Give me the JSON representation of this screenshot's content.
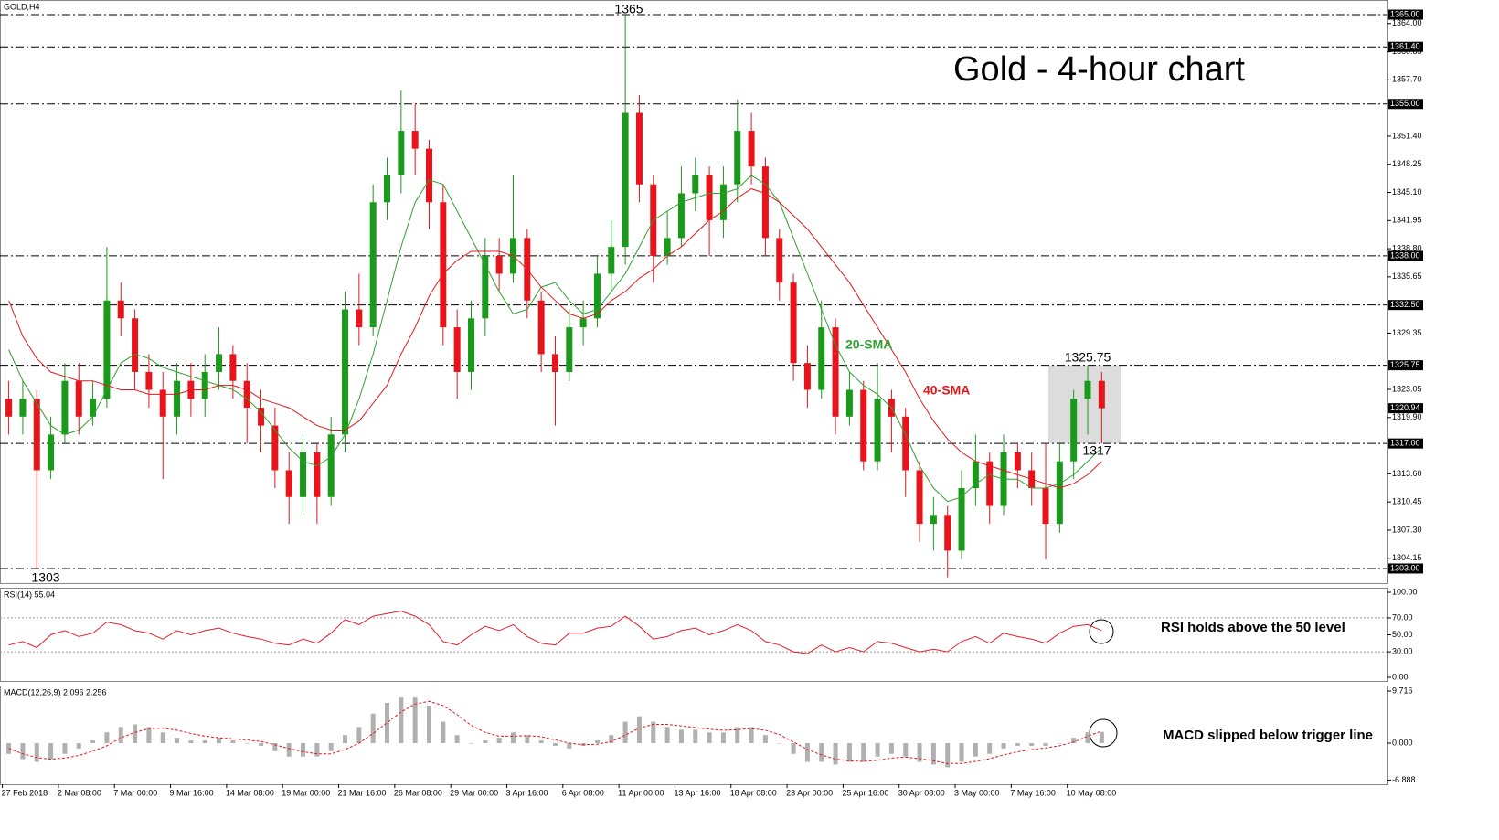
{
  "chart_data": [
    {
      "type": "candlestick",
      "title": "Gold - 4-hour chart",
      "symbol": "GOLD,H4",
      "categories": [
        "27 Feb 2018",
        null,
        null,
        null,
        "2 Mar 08:00",
        null,
        null,
        null,
        "7 Mar 00:00",
        null,
        null,
        null,
        "9 Mar 16:00",
        null,
        null,
        null,
        "14 Mar 08:00",
        null,
        null,
        null,
        "19 Mar 00:00",
        null,
        null,
        null,
        "21 Mar 16:00",
        null,
        null,
        null,
        "26 Mar 08:00",
        null,
        null,
        null,
        "29 Mar 00:00",
        null,
        null,
        null,
        "3 Apr 16:00",
        null,
        null,
        null,
        "6 Apr 08:00",
        null,
        null,
        null,
        "11 Apr 00:00",
        null,
        null,
        null,
        "13 Apr 16:00",
        null,
        null,
        null,
        "18 Apr 08:00",
        null,
        null,
        null,
        "23 Apr 00:00",
        null,
        null,
        null,
        "25 Apr 16:00",
        null,
        null,
        null,
        "30 Apr 08:00",
        null,
        null,
        null,
        "3 May 00:00",
        null,
        null,
        null,
        "7 May 16:00",
        null,
        null,
        null,
        "10 May 08:00",
        null,
        null
      ],
      "open": [
        1322,
        1320,
        1322,
        1314,
        1318,
        1324,
        1320,
        1322,
        1333,
        1331,
        1325,
        1323,
        1320,
        1324,
        1322,
        1325,
        1327,
        1324,
        1321,
        1319,
        1314,
        1311,
        1316,
        1311,
        1318,
        1332,
        1330,
        1344,
        1347,
        1352,
        1350,
        1344,
        1330,
        1325,
        1331,
        1338,
        1336,
        1340,
        1333,
        1327,
        1325,
        1330,
        1331,
        1336,
        1339,
        1354,
        1346,
        1338,
        1340,
        1345,
        1347,
        1342,
        1346,
        1352,
        1348,
        1340,
        1335,
        1326,
        1323,
        1330,
        1320,
        1323,
        1315,
        1322,
        1320,
        1314,
        1308,
        1309,
        1305,
        1312,
        1315,
        1310,
        1316,
        1314,
        1312,
        1308,
        1315,
        1322,
        1324
      ],
      "high": [
        1324,
        1324,
        1323,
        1320,
        1326,
        1326,
        1324,
        1339,
        1335,
        1332,
        1327,
        1325,
        1326,
        1326,
        1327,
        1330,
        1328,
        1326,
        1323,
        1321,
        1316,
        1318,
        1317,
        1320,
        1334,
        1336,
        1346,
        1349,
        1356.5,
        1355,
        1351,
        1346,
        1332,
        1333,
        1340,
        1340,
        1347,
        1341,
        1334,
        1329,
        1332,
        1333,
        1338,
        1342,
        1365,
        1356,
        1347,
        1343,
        1348,
        1349,
        1348,
        1348,
        1355.5,
        1354,
        1349,
        1341,
        1336,
        1328,
        1333,
        1331,
        1325,
        1324,
        1326,
        1323,
        1321,
        1315,
        1311,
        1310,
        1314,
        1318,
        1316,
        1318,
        1317,
        1316,
        1317,
        1317,
        1323,
        1325.75,
        1325
      ],
      "low": [
        1318,
        1318,
        1303,
        1313,
        1317,
        1318,
        1319,
        1321,
        1329,
        1323,
        1321,
        1313,
        1318,
        1320,
        1320,
        1323,
        1322,
        1317,
        1316,
        1312,
        1308,
        1309,
        1308,
        1310,
        1316,
        1328,
        1329,
        1342,
        1345,
        1347,
        1341,
        1328,
        1322,
        1323,
        1329,
        1334,
        1335,
        1331,
        1325,
        1319,
        1324,
        1328,
        1330,
        1334,
        1337,
        1344,
        1335,
        1337,
        1339,
        1343,
        1338,
        1340,
        1344,
        1346,
        1338,
        1333,
        1324,
        1321,
        1322,
        1318,
        1319,
        1314,
        1314,
        1316,
        1311,
        1306,
        1305,
        1302,
        1304,
        1310,
        1308,
        1309,
        1312,
        1310,
        1304,
        1307,
        1313,
        1318,
        1317
      ],
      "close": [
        1320,
        1322,
        1314,
        1318,
        1324,
        1320,
        1322,
        1333,
        1331,
        1325,
        1323,
        1320,
        1324,
        1322,
        1325,
        1327,
        1324,
        1321,
        1319,
        1314,
        1311,
        1316,
        1311,
        1318,
        1332,
        1330,
        1344,
        1347,
        1352,
        1350,
        1344,
        1330,
        1325,
        1331,
        1338,
        1336,
        1340,
        1333,
        1327,
        1325,
        1330,
        1331,
        1336,
        1339,
        1354,
        1346,
        1338,
        1340,
        1345,
        1347,
        1342,
        1346,
        1352,
        1348,
        1340,
        1335,
        1326,
        1323,
        1330,
        1320,
        1323,
        1315,
        1322,
        1320,
        1314,
        1308,
        1309,
        1305,
        1312,
        1315,
        1310,
        1316,
        1314,
        1312,
        1308,
        1315,
        1322,
        1324,
        1320.94
      ],
      "up_color": "#1a9a1a",
      "down_color": "#e8141c",
      "series": [
        {
          "name": "20-SMA",
          "color": "#2ea02e",
          "values": [
            1327.5,
            1324,
            1321.5,
            1319,
            1318,
            1318.5,
            1320,
            1323,
            1326,
            1327,
            1326.5,
            1325.5,
            1325,
            1324.5,
            1324,
            1323.5,
            1323,
            1322,
            1320.5,
            1318.5,
            1316.5,
            1315,
            1314.5,
            1315.5,
            1318,
            1322,
            1327,
            1333,
            1339,
            1344,
            1346.5,
            1346,
            1343,
            1340,
            1337,
            1334,
            1331.5,
            1332,
            1334.5,
            1335,
            1333,
            1331.5,
            1332,
            1334,
            1336,
            1339,
            1342,
            1343,
            1344,
            1344.5,
            1345,
            1345,
            1345.5,
            1347,
            1346,
            1344,
            1340,
            1336,
            1332,
            1328,
            1325,
            1323.5,
            1322.5,
            1321,
            1318,
            1314.5,
            1312,
            1310.5,
            1311,
            1312.5,
            1313.5,
            1313,
            1313,
            1312,
            1312,
            1312.5,
            1313.5,
            1315,
            1316.5
          ]
        },
        {
          "name": "40-SMA",
          "color": "#e31a1c",
          "values": [
            1333,
            1329,
            1326.5,
            1325,
            1324.5,
            1324,
            1324,
            1323.5,
            1323,
            1323,
            1322.5,
            1322.5,
            1322.5,
            1323,
            1323,
            1323.5,
            1323.5,
            1323,
            1322,
            1321.5,
            1321,
            1320,
            1319,
            1318.5,
            1318.5,
            1319.5,
            1321.5,
            1323.5,
            1327,
            1330,
            1333.5,
            1336,
            1337.5,
            1338.5,
            1338.5,
            1338.5,
            1338,
            1336.5,
            1334.5,
            1333,
            1331.5,
            1331,
            1331.5,
            1333,
            1334,
            1335.5,
            1336.5,
            1338,
            1339,
            1340.5,
            1342,
            1343,
            1344.5,
            1345.5,
            1345,
            1344,
            1342.5,
            1341,
            1339,
            1337,
            1335,
            1332.5,
            1330,
            1327.5,
            1325,
            1322,
            1319.5,
            1317.5,
            1316,
            1315,
            1314.5,
            1314,
            1313.5,
            1313,
            1312.5,
            1312,
            1312.5,
            1313.5,
            1315
          ]
        }
      ],
      "ylim": [
        1301.36,
        1366.64
      ],
      "yticks": [
        {
          "value": 1364,
          "label": "1364.00"
        },
        {
          "value": 1360.85,
          "label": "1360.85"
        },
        {
          "value": 1357.7,
          "label": "1357.70"
        },
        {
          "value": 1351.4,
          "label": "1351.40"
        },
        {
          "value": 1348.25,
          "label": "1348.25"
        },
        {
          "value": 1345.1,
          "label": "1345.10"
        },
        {
          "value": 1341.95,
          "label": "1341.95"
        },
        {
          "value": 1338.8,
          "label": "1338.80"
        },
        {
          "value": 1335.65,
          "label": "1335.65"
        },
        {
          "value": 1329.35,
          "label": "1329.35"
        },
        {
          "value": 1323.05,
          "label": "1323.05"
        },
        {
          "value": 1319.9,
          "label": "1319.90"
        },
        {
          "value": 1313.6,
          "label": "1313.60"
        },
        {
          "value": 1310.45,
          "label": "1310.45"
        },
        {
          "value": 1307.3,
          "label": "1307.30"
        },
        {
          "value": 1304.15,
          "label": "1304.15"
        }
      ],
      "levels": [
        {
          "value": 1365,
          "label": "1365.00"
        },
        {
          "value": 1361.4,
          "label": "1361.40"
        },
        {
          "value": 1355,
          "label": "1355.00"
        },
        {
          "value": 1338,
          "label": "1338.00"
        },
        {
          "value": 1332.5,
          "label": "1332.50"
        },
        {
          "value": 1325.75,
          "label": "1325.75"
        },
        {
          "value": 1317,
          "label": "1317.00"
        },
        {
          "value": 1303,
          "label": "1303.00"
        }
      ],
      "last_price": {
        "value": 1320.94,
        "label": "1320.94"
      },
      "annotations": [
        "1365",
        "1303",
        "1325.75",
        "1317"
      ],
      "grid": false
    },
    {
      "type": "line",
      "title": "RSI(14) 55.04",
      "color": "#e0202a",
      "values": [
        38,
        42,
        35,
        50,
        55,
        48,
        52,
        65,
        62,
        55,
        52,
        45,
        55,
        50,
        55,
        58,
        52,
        48,
        45,
        40,
        38,
        45,
        40,
        52,
        68,
        62,
        72,
        75,
        78,
        72,
        62,
        42,
        38,
        50,
        60,
        55,
        62,
        48,
        40,
        38,
        52,
        52,
        58,
        60,
        72,
        60,
        45,
        48,
        55,
        58,
        50,
        55,
        62,
        55,
        42,
        38,
        30,
        28,
        38,
        30,
        35,
        30,
        42,
        40,
        35,
        30,
        33,
        30,
        42,
        48,
        40,
        52,
        48,
        45,
        40,
        52,
        60,
        62,
        55.04
      ],
      "ylim": [
        -4.3,
        105.4
      ],
      "yticks": [
        {
          "value": 100,
          "label": "100.00"
        },
        {
          "value": 70,
          "label": "70.00"
        },
        {
          "value": 50,
          "label": "50.00"
        },
        {
          "value": 30,
          "label": "30.00"
        },
        {
          "value": 0,
          "label": "0.00"
        }
      ],
      "levels": [
        70,
        30
      ],
      "note": "RSI holds above the 50 level"
    },
    {
      "type": "macd",
      "title": "MACD(12,26,9) 2.096 2.256",
      "color": "#b0b0b0",
      "values": [
        -2,
        -3,
        -3.5,
        -3,
        -2,
        -1,
        0.5,
        2,
        3,
        3.5,
        3,
        2,
        1,
        0.5,
        0.5,
        1,
        0.5,
        0,
        -0.5,
        -1.5,
        -2.5,
        -2.5,
        -2.5,
        -1.5,
        1.5,
        3,
        5.5,
        7.5,
        8.5,
        8.5,
        7,
        4,
        1.5,
        0,
        0.5,
        1,
        2,
        1.5,
        0.5,
        -0.5,
        -1,
        -0.5,
        0.5,
        1.5,
        4,
        5,
        4,
        3,
        2.5,
        2.5,
        2,
        2,
        3,
        3,
        1.5,
        0,
        -2,
        -3.5,
        -3.5,
        -4,
        -3.5,
        -3.5,
        -2.5,
        -2,
        -2.5,
        -3.5,
        -4,
        -4.5,
        -3.5,
        -2.5,
        -2,
        -1,
        -0.5,
        -0.5,
        -0.5,
        0,
        1,
        2,
        2.096
      ],
      "signal": [
        -1,
        -2,
        -2.7,
        -3,
        -2.8,
        -2.3,
        -1.5,
        -0.5,
        1,
        2,
        2.7,
        2.8,
        2.4,
        1.8,
        1.3,
        1,
        0.8,
        0.6,
        0.3,
        -0.3,
        -1,
        -1.6,
        -2,
        -2,
        -1.2,
        0,
        1.8,
        3.8,
        5.8,
        7.3,
        7.8,
        7,
        5.3,
        3.3,
        2,
        1.3,
        1.3,
        1.4,
        1.2,
        0.6,
        0,
        -0.3,
        -0.2,
        0.3,
        1.5,
        2.8,
        3.5,
        3.5,
        3.2,
        2.9,
        2.6,
        2.4,
        2.5,
        2.7,
        2.4,
        1.6,
        0.2,
        -1.2,
        -2.2,
        -3,
        -3.3,
        -3.4,
        -3.2,
        -2.8,
        -2.6,
        -2.9,
        -3.3,
        -3.8,
        -3.8,
        -3.4,
        -2.9,
        -2.2,
        -1.6,
        -1.2,
        -0.9,
        -0.5,
        0.2,
        1.3,
        2.256
      ],
      "signal_color": "#e31a1c",
      "ylim": [
        -7.67,
        10.74
      ],
      "yticks": [
        9.716,
        {
          "value": 0,
          "label": "0.000"
        },
        -6.888
      ],
      "note": "MACD slipped below trigger line"
    }
  ]
}
